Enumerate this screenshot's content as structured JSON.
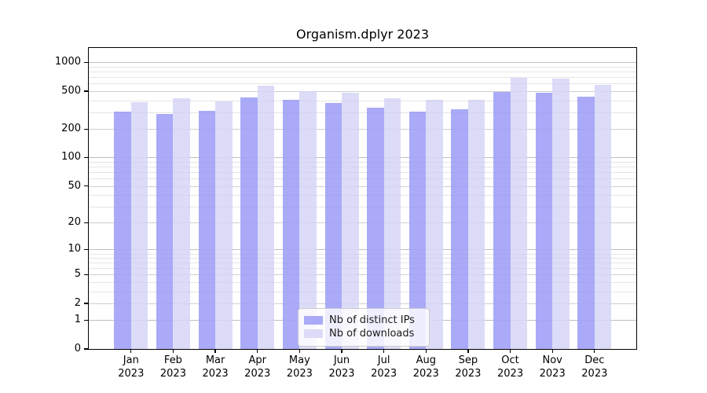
{
  "chart_data": {
    "type": "bar",
    "title": "Organism.dplyr 2023",
    "year_label": "2023",
    "categories": [
      "Jan",
      "Feb",
      "Mar",
      "Apr",
      "May",
      "Jun",
      "Jul",
      "Aug",
      "Sep",
      "Oct",
      "Nov",
      "Dec"
    ],
    "series": [
      {
        "name": "Nb of distinct IPs",
        "color": "#aaaaf8",
        "values": [
          305,
          286,
          310,
          432,
          405,
          375,
          335,
          304,
          325,
          487,
          480,
          437
        ]
      },
      {
        "name": "Nb of downloads",
        "color": "#dcdcf8",
        "values": [
          385,
          424,
          390,
          574,
          500,
          478,
          418,
          405,
          402,
          694,
          676,
          578
        ]
      }
    ],
    "y_ticks": [
      1000,
      500,
      200,
      100,
      50,
      20,
      10,
      5,
      2,
      1,
      0
    ],
    "y_scale": "log1p",
    "ylim": [
      0,
      1400
    ],
    "grid": true,
    "legend_position": "bottom-center",
    "axis_color": "#000000",
    "grid_major_color": "#d7d7d7",
    "grid_minor_color": "#efefef"
  }
}
